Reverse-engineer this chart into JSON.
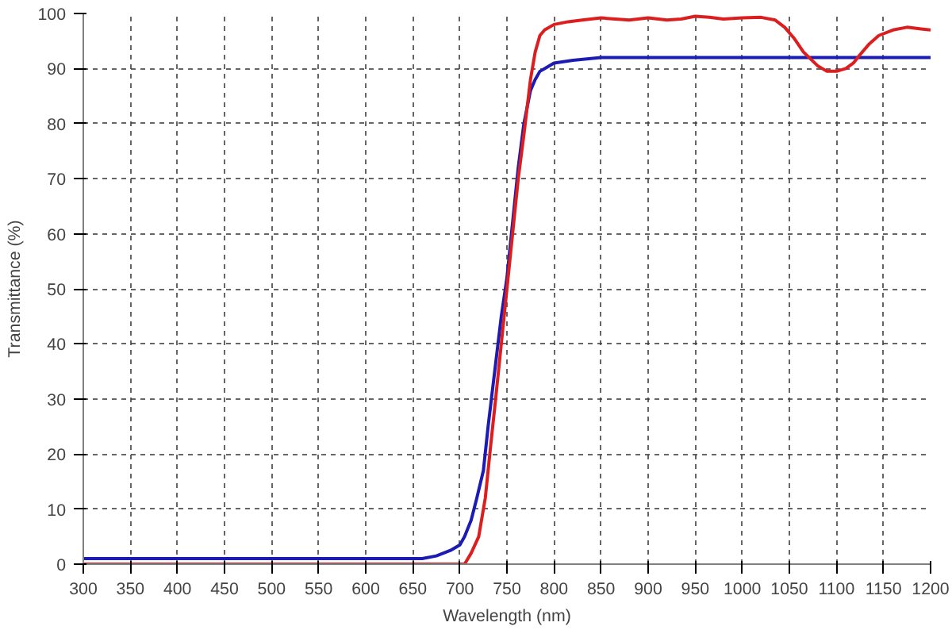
{
  "chart_data": {
    "type": "line",
    "xlabel": "Wavelength (nm)",
    "ylabel": "Transmittance (%)",
    "xlim": [
      300,
      1200
    ],
    "ylim": [
      0,
      100
    ],
    "xticks": [
      300,
      350,
      400,
      450,
      500,
      550,
      600,
      650,
      700,
      750,
      800,
      850,
      900,
      950,
      1000,
      1050,
      1100,
      1150,
      1200
    ],
    "yticks": [
      0,
      10,
      20,
      30,
      40,
      50,
      60,
      70,
      80,
      90,
      100
    ],
    "grid": true,
    "line_style": "solid",
    "marker": "none",
    "series": [
      {
        "color": "#1c1cb4",
        "x": [
          300,
          500,
          660,
          675,
          690,
          700,
          705,
          712,
          718,
          725,
          730,
          737,
          744,
          750,
          756,
          762,
          768,
          775,
          780,
          785,
          790,
          800,
          820,
          850,
          1000,
          1200
        ],
        "values": [
          1,
          1,
          1,
          1.5,
          2.5,
          3.5,
          5,
          8,
          12,
          17,
          25,
          35,
          45,
          52,
          62,
          72,
          80,
          86,
          88,
          89.5,
          90,
          91,
          91.5,
          92,
          92,
          92
        ]
      },
      {
        "color": "#dc1e1e",
        "x": [
          300,
          500,
          700,
          705,
          712,
          720,
          727,
          733,
          738,
          744,
          750,
          756,
          762,
          768,
          775,
          780,
          785,
          790,
          800,
          815,
          830,
          850,
          865,
          880,
          900,
          920,
          935,
          950,
          965,
          980,
          1000,
          1020,
          1035,
          1045,
          1055,
          1065,
          1080,
          1090,
          1100,
          1110,
          1118,
          1125,
          1135,
          1145,
          1160,
          1175,
          1190,
          1200
        ],
        "values": [
          0,
          0,
          0,
          0,
          2,
          5,
          12,
          22,
          30,
          40,
          50,
          60,
          70,
          78,
          88,
          93,
          96,
          97,
          98,
          98.5,
          98.8,
          99.2,
          99,
          98.8,
          99.2,
          98.8,
          99,
          99.5,
          99.3,
          99,
          99.2,
          99.3,
          98.8,
          97.5,
          95.5,
          93,
          90.5,
          89.5,
          89.5,
          90,
          91,
          92.5,
          94.5,
          96,
          97,
          97.5,
          97.2,
          97
        ]
      }
    ]
  }
}
